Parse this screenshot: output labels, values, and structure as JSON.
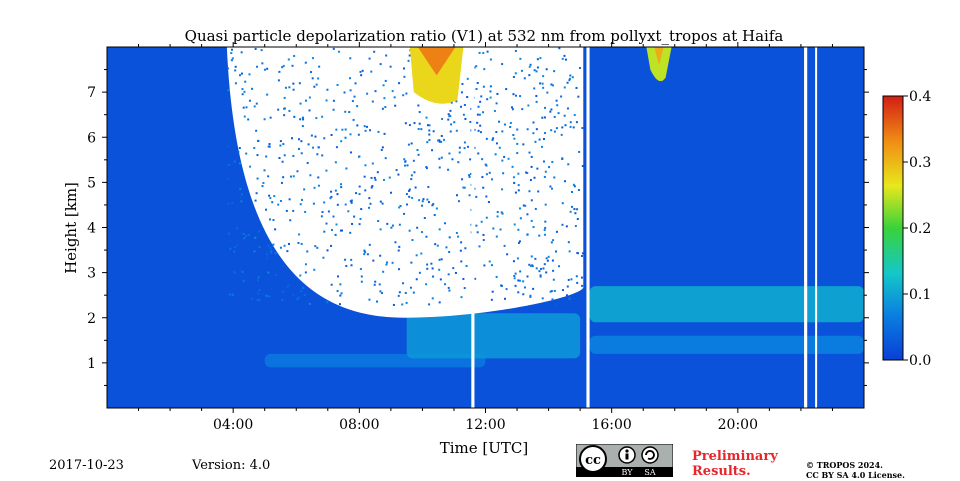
{
  "chart_data": {
    "type": "heatmap",
    "title": "Quasi particle depolarization ratio (V1) at 532 nm from pollyxt_tropos at Haifa",
    "xlabel": "Time [UTC]",
    "ylabel": "Height [km]",
    "xlim": [
      0,
      24
    ],
    "ylim": [
      0,
      8
    ],
    "xticks": [
      {
        "value": 4,
        "label": "04:00"
      },
      {
        "value": 8,
        "label": "08:00"
      },
      {
        "value": 12,
        "label": "12:00"
      },
      {
        "value": 16,
        "label": "16:00"
      },
      {
        "value": 20,
        "label": "20:00"
      }
    ],
    "yticks": [
      {
        "value": 1,
        "label": "1"
      },
      {
        "value": 2,
        "label": "2"
      },
      {
        "value": 3,
        "label": "3"
      },
      {
        "value": 4,
        "label": "4"
      },
      {
        "value": 5,
        "label": "5"
      },
      {
        "value": 6,
        "label": "6"
      },
      {
        "value": 7,
        "label": "7"
      }
    ],
    "colorbar": {
      "min": 0.0,
      "max": 0.4,
      "ticks": [
        {
          "value": 0.0,
          "label": "0.0"
        },
        {
          "value": 0.1,
          "label": "0.1"
        },
        {
          "value": 0.2,
          "label": "0.2"
        },
        {
          "value": 0.3,
          "label": "0.3"
        },
        {
          "value": 0.4,
          "label": "0.4"
        }
      ],
      "colors": [
        "#0a3fd6",
        "#0a7fe0",
        "#14c8c8",
        "#3ad23a",
        "#e8e81c",
        "#f08c14",
        "#d21e14"
      ]
    },
    "background_value": 0.02,
    "no_data_gaps_hours": [
      [
        11.55,
        11.65
      ],
      [
        15.2,
        15.3
      ],
      [
        22.1,
        22.2
      ],
      [
        22.45,
        22.5
      ]
    ],
    "no_signal_region": {
      "start_hour": 3.8,
      "end_hour": 15.1,
      "min_height_km_at_noon": 2.0
    },
    "aerosol_layers": [
      {
        "start_hour": 5.0,
        "end_hour": 12.0,
        "bottom_km": 0.9,
        "top_km": 1.2,
        "value": 0.06
      },
      {
        "start_hour": 9.5,
        "end_hour": 15.0,
        "bottom_km": 1.1,
        "top_km": 2.1,
        "value": 0.09
      },
      {
        "start_hour": 15.3,
        "end_hour": 24.0,
        "bottom_km": 1.9,
        "top_km": 2.7,
        "value": 0.11
      },
      {
        "start_hour": 15.3,
        "end_hour": 24.0,
        "bottom_km": 1.2,
        "top_km": 1.6,
        "value": 0.07
      }
    ],
    "high_depol_features": [
      {
        "start_hour": 9.6,
        "end_hour": 11.3,
        "bottom_km": 6.6,
        "top_km": 8.0,
        "value": 0.28
      },
      {
        "start_hour": 17.1,
        "end_hour": 17.9,
        "bottom_km": 7.1,
        "top_km": 8.0,
        "value": 0.25
      }
    ]
  },
  "footer": {
    "date": "2017-10-23",
    "version": "Version: 4.0",
    "preliminary_line1": "Preliminary",
    "preliminary_line2": "Results.",
    "copyright_line1": "© TROPOS 2024.",
    "copyright_line2": "CC BY SA 4.0 License.",
    "license_badge_text": "cc",
    "license_by": "BY",
    "license_sa": "SA"
  },
  "colors": {
    "accent_red": "#e8252a",
    "badge_bg": "#aab0ad"
  }
}
